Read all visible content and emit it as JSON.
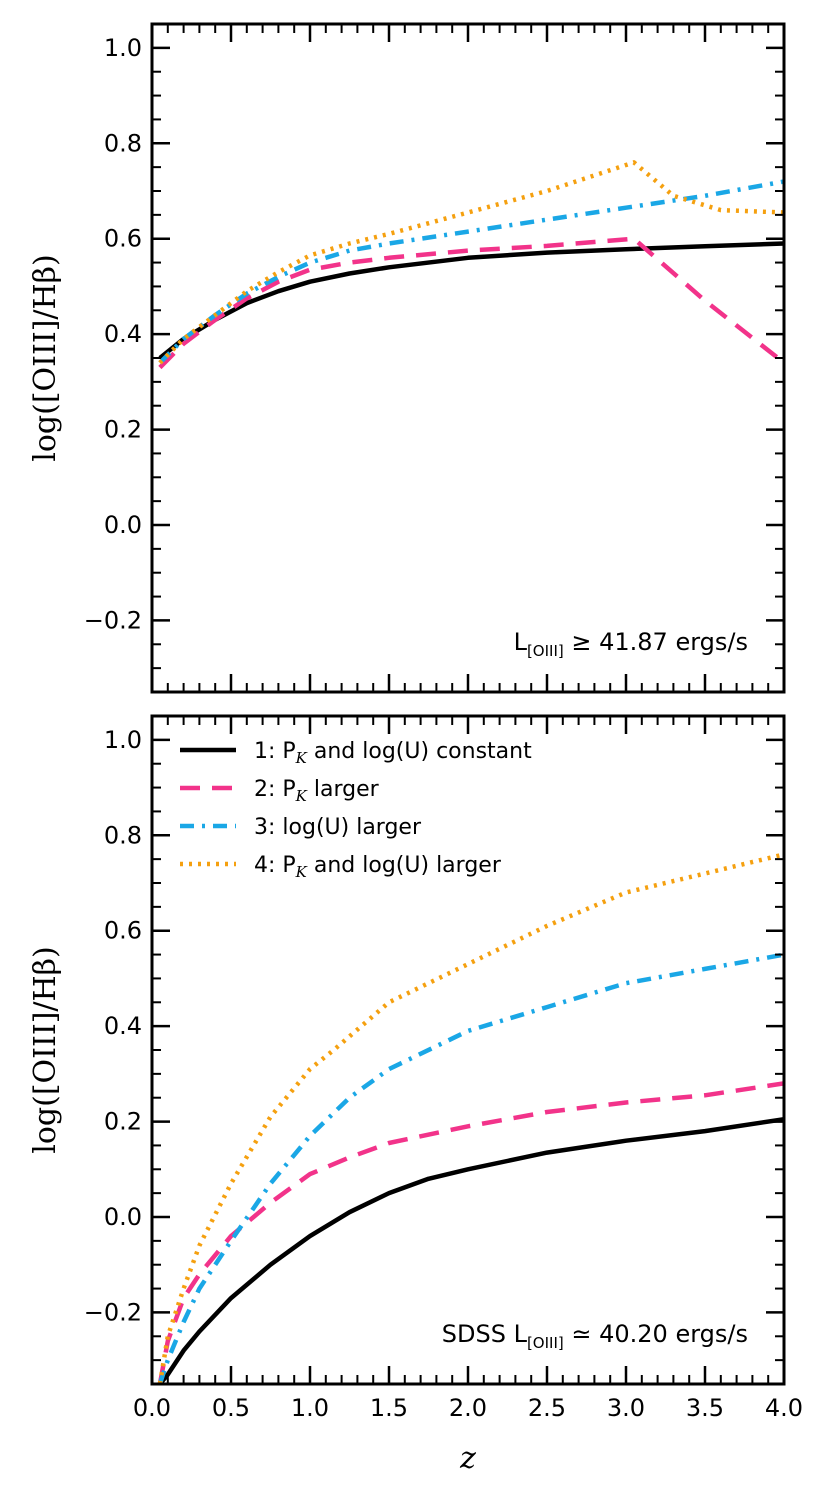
{
  "chart_data": [
    {
      "type": "line",
      "panel": "top",
      "ylabel": "log([OIII]/Hβ)",
      "xlabel": "",
      "xlim": [
        0.0,
        4.0
      ],
      "ylim": [
        -0.35,
        1.05
      ],
      "x_ticks": [],
      "y_ticks": [
        "1.0",
        "0.8",
        "0.6",
        "0.4",
        "0.2",
        "0.0",
        "−0.2"
      ],
      "y_tick_values": [
        1.0,
        0.8,
        0.6,
        0.4,
        0.2,
        0.0,
        -0.2
      ],
      "annotation": {
        "prefix": "L",
        "sub": "[OIII]",
        "suffix": " ≥ 41.87 ergs/s"
      },
      "series": [
        {
          "key": "s1",
          "x": [
            0.05,
            0.2,
            0.4,
            0.6,
            0.8,
            1.0,
            1.25,
            1.5,
            2.0,
            2.5,
            3.0,
            3.5,
            4.0
          ],
          "y": [
            0.35,
            0.39,
            0.43,
            0.465,
            0.49,
            0.51,
            0.527,
            0.54,
            0.56,
            0.571,
            0.578,
            0.584,
            0.59
          ]
        },
        {
          "key": "s2",
          "x": [
            0.05,
            0.2,
            0.4,
            0.6,
            0.8,
            1.0,
            1.25,
            1.5,
            2.0,
            2.5,
            3.05,
            3.5,
            4.0
          ],
          "y": [
            0.33,
            0.38,
            0.43,
            0.475,
            0.51,
            0.535,
            0.55,
            0.56,
            0.575,
            0.585,
            0.6,
            0.47,
            0.34
          ]
        },
        {
          "key": "s3",
          "x": [
            0.05,
            0.2,
            0.4,
            0.6,
            0.8,
            1.0,
            1.25,
            1.5,
            2.0,
            2.5,
            3.0,
            3.5,
            4.0
          ],
          "y": [
            0.34,
            0.39,
            0.44,
            0.485,
            0.52,
            0.55,
            0.575,
            0.59,
            0.615,
            0.64,
            0.665,
            0.69,
            0.72
          ]
        },
        {
          "key": "s4",
          "x": [
            0.05,
            0.2,
            0.4,
            0.6,
            0.8,
            1.0,
            1.25,
            1.5,
            2.0,
            2.5,
            3.05,
            3.3,
            3.6,
            4.0
          ],
          "y": [
            0.34,
            0.39,
            0.44,
            0.49,
            0.53,
            0.565,
            0.59,
            0.61,
            0.655,
            0.7,
            0.76,
            0.69,
            0.66,
            0.655
          ]
        }
      ]
    },
    {
      "type": "line",
      "panel": "bottom",
      "ylabel": "log([OIII]/Hβ)",
      "xlabel": "z",
      "xlim": [
        0.0,
        4.0
      ],
      "ylim": [
        -0.35,
        1.05
      ],
      "x_ticks": [
        "0.0",
        "0.5",
        "1.0",
        "1.5",
        "2.0",
        "2.5",
        "3.0",
        "3.5",
        "4.0"
      ],
      "x_tick_values": [
        0.0,
        0.5,
        1.0,
        1.5,
        2.0,
        2.5,
        3.0,
        3.5,
        4.0
      ],
      "y_ticks": [
        "1.0",
        "0.8",
        "0.6",
        "0.4",
        "0.2",
        "0.0",
        "−0.2"
      ],
      "y_tick_values": [
        1.0,
        0.8,
        0.6,
        0.4,
        0.2,
        0.0,
        -0.2
      ],
      "annotation": {
        "prefix": "SDSS L",
        "sub": "[OIII]",
        "suffix": " ≃ 40.20 ergs/s"
      },
      "legend_position": "upper-left",
      "series": [
        {
          "key": "s1",
          "x": [
            0.05,
            0.1,
            0.2,
            0.3,
            0.5,
            0.75,
            1.0,
            1.25,
            1.5,
            1.75,
            2.0,
            2.5,
            3.0,
            3.5,
            4.0
          ],
          "y": [
            -0.35,
            -0.33,
            -0.28,
            -0.24,
            -0.17,
            -0.1,
            -0.04,
            0.01,
            0.05,
            0.08,
            0.1,
            0.135,
            0.16,
            0.18,
            0.205
          ]
        },
        {
          "key": "s2",
          "x": [
            0.05,
            0.1,
            0.2,
            0.3,
            0.5,
            0.75,
            1.0,
            1.25,
            1.5,
            2.0,
            2.5,
            3.0,
            3.5,
            4.0
          ],
          "y": [
            -0.35,
            -0.26,
            -0.17,
            -0.12,
            -0.04,
            0.03,
            0.09,
            0.125,
            0.155,
            0.19,
            0.22,
            0.24,
            0.255,
            0.28
          ]
        },
        {
          "key": "s3",
          "x": [
            0.05,
            0.1,
            0.2,
            0.3,
            0.5,
            0.75,
            1.0,
            1.25,
            1.5,
            2.0,
            2.5,
            3.0,
            3.5,
            4.0
          ],
          "y": [
            -0.35,
            -0.3,
            -0.22,
            -0.15,
            -0.05,
            0.07,
            0.17,
            0.25,
            0.31,
            0.39,
            0.44,
            0.49,
            0.52,
            0.55
          ]
        },
        {
          "key": "s4",
          "x": [
            0.05,
            0.1,
            0.2,
            0.3,
            0.5,
            0.75,
            1.0,
            1.15,
            1.5,
            2.0,
            2.5,
            3.0,
            3.5,
            4.0
          ],
          "y": [
            -0.35,
            -0.25,
            -0.15,
            -0.06,
            0.07,
            0.21,
            0.31,
            0.35,
            0.45,
            0.53,
            0.61,
            0.68,
            0.72,
            0.76
          ]
        }
      ],
      "legend": [
        {
          "key": "s1",
          "label": "1: P<K> and log(U) constant",
          "parts": [
            "1: P",
            "K",
            "  and log(U) constant"
          ]
        },
        {
          "key": "s2",
          "label": "2: P<K> larger",
          "parts": [
            "2: P",
            "K",
            "  larger"
          ]
        },
        {
          "key": "s3",
          "label": "3: log(U) larger",
          "parts": [
            "3: log(U) larger",
            "",
            ""
          ]
        },
        {
          "key": "s4",
          "label": "4: P<K> and log(U) larger",
          "parts": [
            "4: P",
            "K",
            "  and log(U) larger"
          ]
        }
      ]
    }
  ],
  "series_styles": {
    "s1": {
      "name": "1: P_K and log(U) constant",
      "color": "#000000",
      "dash": "solid"
    },
    "s2": {
      "name": "2: P_K larger",
      "color": "#f2338a",
      "dash": "dashed"
    },
    "s3": {
      "name": "3: log(U) larger",
      "color": "#1aa7e6",
      "dash": "dashdot"
    },
    "s4": {
      "name": "4: P_K and log(U) larger",
      "color": "#f5a00f",
      "dash": "dotted"
    }
  }
}
